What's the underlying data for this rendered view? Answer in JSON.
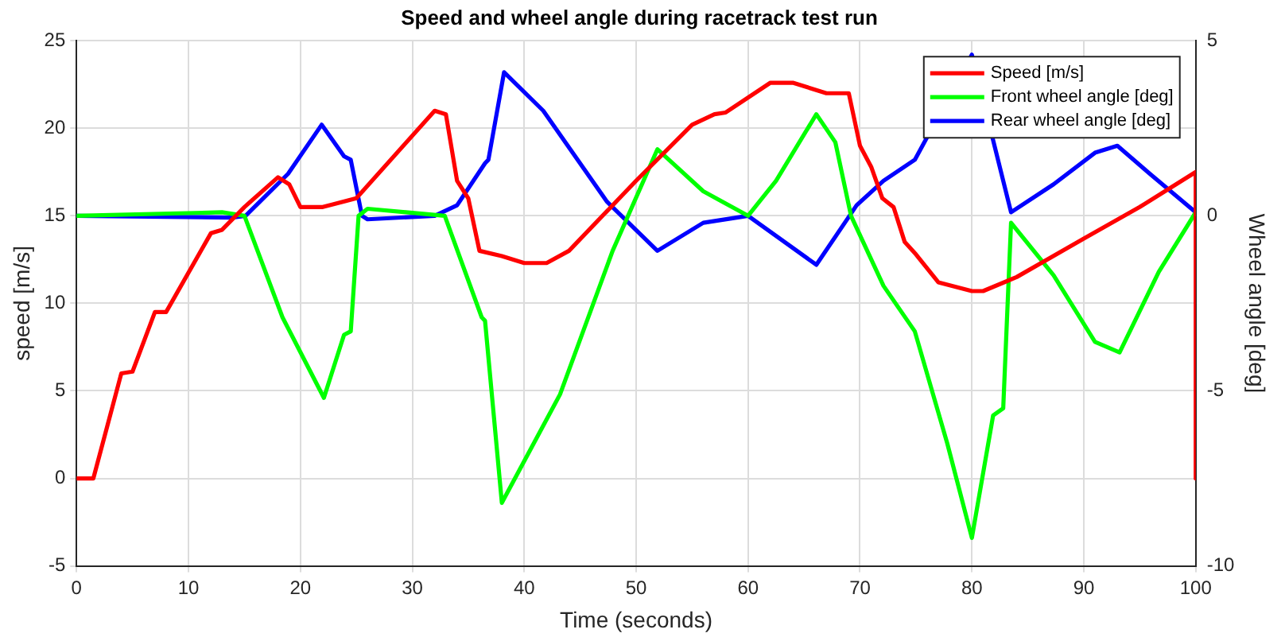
{
  "chart_data": {
    "type": "line",
    "title": "Speed and wheel angle during racetrack test run",
    "xlabel": "Time (seconds)",
    "ylabel": "speed [m/s]",
    "y2label": "Wheel angle [deg]",
    "xlim": [
      0,
      100
    ],
    "xticks": [
      0,
      10,
      20,
      30,
      40,
      50,
      60,
      70,
      80,
      90,
      100
    ],
    "ylim": [
      -5,
      25
    ],
    "yticks": [
      -5,
      0,
      5,
      10,
      15,
      20,
      25
    ],
    "y2lim": [
      -10,
      5
    ],
    "y2ticks": [
      -10,
      -5,
      0,
      5
    ],
    "grid": true,
    "legend": "top right",
    "marker": "none",
    "line_style": "solid",
    "series": [
      {
        "name": "Speed [m/s]",
        "color": "#ff0000",
        "x": [
          0,
          1.5,
          4,
          5,
          7,
          8,
          12,
          13,
          15,
          18,
          19,
          20,
          22,
          25,
          32,
          33,
          34,
          35,
          36,
          38,
          40,
          42,
          44,
          50,
          55,
          57,
          58,
          62,
          64,
          67,
          69,
          70,
          71,
          72,
          73,
          74,
          75,
          77,
          80,
          81,
          84,
          90,
          95,
          100,
          100
        ],
        "values": [
          0,
          0,
          6,
          6.1,
          9.5,
          9.5,
          14,
          14.2,
          15.5,
          17.2,
          16.8,
          15.5,
          15.5,
          16,
          21,
          20.8,
          17,
          16,
          13,
          12.7,
          12.3,
          12.3,
          13,
          17,
          20.2,
          20.8,
          20.9,
          22.6,
          22.6,
          22,
          22,
          19,
          17.8,
          16,
          15.5,
          13.5,
          12.8,
          11.2,
          10.7,
          10.7,
          11.5,
          13.7,
          15.5,
          17.5,
          0
        ]
      },
      {
        "name": "Front wheel angle [deg]",
        "color": "#00ff00",
        "axis": "y2",
        "x": [
          0,
          13,
          15,
          18.4,
          22.1,
          23.9,
          24.5,
          25.2,
          26,
          32.9,
          36.2,
          36.5,
          38,
          43.2,
          47.9,
          51.9,
          56,
          60,
          62.5,
          66.1,
          67.8,
          69.2,
          72.1,
          74.9,
          77.8,
          80,
          81.9,
          82.8,
          83.5,
          87.3,
          91,
          93.2,
          96.7,
          100
        ],
        "values": [
          0,
          0.1,
          0,
          -2.9,
          -5.2,
          -3.4,
          -3.3,
          0,
          0.2,
          0,
          -2.9,
          -3,
          -8.2,
          -5.1,
          -1,
          1.9,
          0.7,
          0,
          1,
          2.9,
          2.1,
          0,
          -2,
          -3.3,
          -6.5,
          -9.2,
          -5.7,
          -5.5,
          -0.2,
          -1.7,
          -3.6,
          -3.9,
          -1.6,
          0.1
        ]
      },
      {
        "name": "Rear wheel angle [deg]",
        "color": "#0000ff",
        "axis": "y2",
        "x": [
          0,
          14,
          15.1,
          18.9,
          21.9,
          23.9,
          24.5,
          25.5,
          26,
          32,
          34,
          36.5,
          36.8,
          38.2,
          41.7,
          47.4,
          51.9,
          56,
          60,
          66.1,
          69.7,
          72.1,
          74.9,
          80,
          83.5,
          87.3,
          91,
          93,
          95.9,
          100
        ],
        "values": [
          0,
          -0.05,
          0,
          1.2,
          2.6,
          1.7,
          1.6,
          0,
          -0.1,
          0,
          0.3,
          1.5,
          1.6,
          4.1,
          3,
          0.4,
          -1,
          -0.2,
          0,
          -1.4,
          0.3,
          1,
          1.6,
          4.6,
          0.1,
          0.9,
          1.8,
          2,
          1.2,
          0.1
        ]
      }
    ]
  }
}
